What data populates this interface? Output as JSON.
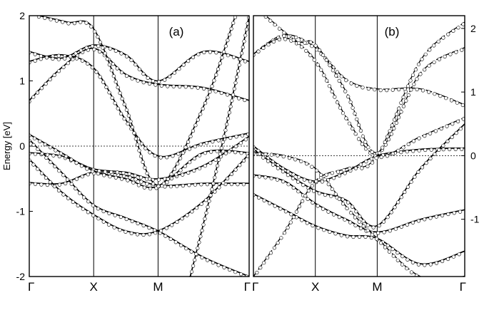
{
  "chart_data": [
    {
      "panel": "a",
      "type": "line",
      "label": "(a)",
      "ylabel": "Energy [eV]",
      "ylim": [
        -2,
        2
      ],
      "yticks": [
        -2,
        -1,
        0,
        1,
        2
      ],
      "kpoints": [
        {
          "label": "Γ",
          "k": 0
        },
        {
          "label": "X",
          "k": 1
        },
        {
          "label": "M",
          "k": 2
        },
        {
          "label": "Γ",
          "k": 3.414
        }
      ],
      "fermi_level": 0,
      "series": [
        {
          "style": "solid",
          "points": [
            [
              0,
              -0.56
            ],
            [
              0.5,
              -0.57
            ],
            [
              1,
              -0.4
            ],
            [
              1.5,
              -0.45
            ],
            [
              2,
              -0.6
            ],
            [
              2.7,
              -0.57
            ],
            [
              3.414,
              -0.57
            ]
          ]
        },
        {
          "style": "solid",
          "points": [
            [
              0,
              -0.1
            ],
            [
              0.5,
              -0.15
            ],
            [
              1,
              -0.35
            ],
            [
              1.5,
              -0.4
            ],
            [
              2,
              -0.5
            ],
            [
              2.7,
              -0.3
            ],
            [
              3.414,
              0.15
            ]
          ]
        },
        {
          "style": "solid",
          "points": [
            [
              0,
              0.18
            ],
            [
              0.5,
              -0.1
            ],
            [
              1,
              -0.38
            ],
            [
              1.5,
              -0.5
            ],
            [
              2,
              -0.62
            ],
            [
              2.7,
              -0.1
            ],
            [
              3.414,
              -0.1
            ]
          ]
        },
        {
          "style": "solid",
          "points": [
            [
              0,
              0.1
            ],
            [
              0.5,
              -0.4
            ],
            [
              1,
              -0.9
            ],
            [
              1.5,
              -1.1
            ],
            [
              2,
              -1.3
            ],
            [
              2.7,
              -1.7
            ],
            [
              3.414,
              -2
            ]
          ]
        },
        {
          "style": "solid",
          "points": [
            [
              0,
              -0.2
            ],
            [
              0.5,
              -0.7
            ],
            [
              1,
              -1.05
            ],
            [
              1.5,
              -1.3
            ],
            [
              2,
              -1.3
            ],
            [
              2.7,
              -0.85
            ],
            [
              3.414,
              -0.12
            ]
          ]
        },
        {
          "style": "solid",
          "points": [
            [
              0,
              0.7
            ],
            [
              0.5,
              1.2
            ],
            [
              1,
              1.5
            ],
            [
              1.5,
              1.1
            ],
            [
              2,
              0.95
            ],
            [
              2.7,
              0.9
            ],
            [
              3.414,
              0.7
            ]
          ]
        },
        {
          "style": "solid",
          "points": [
            [
              0,
              1.3
            ],
            [
              0.5,
              1.4
            ],
            [
              1,
              1.2
            ],
            [
              1.5,
              0.4
            ],
            [
              2,
              -0.15
            ],
            [
              2.7,
              0.05
            ],
            [
              3.414,
              0.2
            ]
          ]
        },
        {
          "style": "solid",
          "points": [
            [
              0,
              1.45
            ],
            [
              0.5,
              1.35
            ],
            [
              1,
              1.55
            ],
            [
              1.5,
              1.4
            ],
            [
              2,
              1.0
            ],
            [
              2.7,
              1.45
            ],
            [
              3.414,
              1.3
            ]
          ]
        },
        {
          "style": "solid",
          "points": [
            [
              0.15,
              2
            ],
            [
              0.6,
              1.9
            ],
            [
              1,
              1.8
            ],
            [
              1.5,
              0.6
            ],
            [
              2,
              -0.6
            ],
            [
              2.7,
              0.6
            ],
            [
              3.2,
              2
            ]
          ]
        },
        {
          "style": "solid",
          "points": [
            [
              2.5,
              -2
            ],
            [
              2.8,
              -0.8
            ],
            [
              3.1,
              0.5
            ],
            [
              3.414,
              2
            ]
          ]
        }
      ]
    },
    {
      "panel": "b",
      "type": "line",
      "label": "(b)",
      "ylim": [
        -1.9,
        2.2
      ],
      "yticks": [
        -1,
        0,
        1,
        2
      ],
      "kpoints": [
        {
          "label": "Γ",
          "k": 0
        },
        {
          "label": "X",
          "k": 1
        },
        {
          "label": "M",
          "k": 2
        },
        {
          "label": "Γ",
          "k": 3.414
        }
      ],
      "fermi_level": 0,
      "series": [
        {
          "style": "solid",
          "points": [
            [
              0,
              0.15
            ],
            [
              0.5,
              -0.2
            ],
            [
              1,
              -0.4
            ],
            [
              1.5,
              -0.25
            ],
            [
              2,
              0
            ],
            [
              2.7,
              0.1
            ],
            [
              3.414,
              0.12
            ]
          ]
        },
        {
          "style": "solid",
          "points": [
            [
              0,
              0.1
            ],
            [
              0.5,
              -0.25
            ],
            [
              1,
              -0.55
            ],
            [
              1.5,
              -0.7
            ],
            [
              2,
              -1.1
            ],
            [
              2.7,
              -0.2
            ],
            [
              3.414,
              0.5
            ]
          ]
        },
        {
          "style": "solid",
          "points": [
            [
              0,
              -0.3
            ],
            [
              0.5,
              -0.4
            ],
            [
              1,
              -0.75
            ],
            [
              1.5,
              -1.0
            ],
            [
              2,
              -1.2
            ],
            [
              2.7,
              -1.0
            ],
            [
              3.414,
              -0.85
            ]
          ]
        },
        {
          "style": "solid",
          "points": [
            [
              0,
              -0.6
            ],
            [
              0.5,
              -0.85
            ],
            [
              1,
              -1.1
            ],
            [
              1.5,
              -1.25
            ],
            [
              2,
              -1.3
            ],
            [
              2.7,
              -1.7
            ],
            [
              3.414,
              -1.5
            ]
          ]
        },
        {
          "style": "dashed",
          "points": [
            [
              0,
              1.6
            ],
            [
              0.5,
              1.9
            ],
            [
              1,
              1.7
            ],
            [
              1.5,
              1.2
            ],
            [
              2,
              1.05
            ],
            [
              2.7,
              1.05
            ],
            [
              3.414,
              0.8
            ]
          ]
        },
        {
          "style": "dashed",
          "points": [
            [
              0,
              1.6
            ],
            [
              0.5,
              1.85
            ],
            [
              1,
              1.5
            ],
            [
              1.5,
              0.6
            ],
            [
              2,
              0
            ],
            [
              2.7,
              0.3
            ],
            [
              3.414,
              0.6
            ]
          ]
        },
        {
          "style": "dashed",
          "points": [
            [
              0.2,
              2.2
            ],
            [
              0.7,
              1.8
            ],
            [
              1,
              1.75
            ],
            [
              1.5,
              1.0
            ],
            [
              2,
              0.05
            ],
            [
              2.7,
              1.3
            ],
            [
              3.414,
              1.7
            ]
          ]
        },
        {
          "style": "dashed",
          "points": [
            [
              0,
              -1.9
            ],
            [
              0.5,
              -1.2
            ],
            [
              1,
              -0.4
            ],
            [
              1.5,
              -0.2
            ],
            [
              2,
              0
            ],
            [
              2.7,
              1.5
            ],
            [
              3.414,
              2.1
            ]
          ]
        },
        {
          "style": "dashed",
          "points": [
            [
              0,
              0.05
            ],
            [
              0.5,
              0.0
            ],
            [
              1,
              -0.2
            ],
            [
              1.5,
              -0.8
            ],
            [
              2,
              -1.3
            ],
            [
              2.7,
              -1.9
            ],
            [
              3.414,
              -1.9
            ]
          ]
        }
      ]
    }
  ]
}
